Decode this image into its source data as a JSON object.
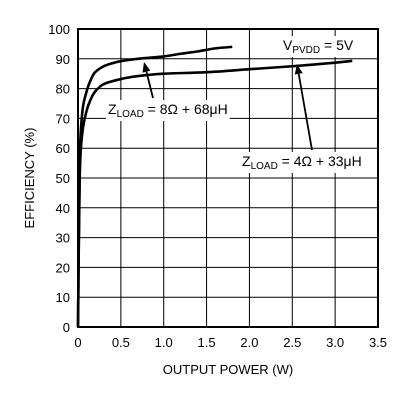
{
  "chart_data": {
    "type": "line",
    "xlabel": "OUTPUT POWER (W)",
    "ylabel": "EFFICIENCY (%)",
    "xlim": [
      0,
      3.5
    ],
    "ylim": [
      0,
      100
    ],
    "xticks": [
      "0",
      "0.5",
      "1.0",
      "1.5",
      "2.0",
      "2.5",
      "3.0",
      "3.5"
    ],
    "yticks": [
      "0",
      "10",
      "20",
      "30",
      "40",
      "50",
      "60",
      "70",
      "80",
      "90",
      "100"
    ],
    "grid": true,
    "annotations": {
      "vpvdd": {
        "main": "V",
        "sub": "PVDD",
        "rest": " = 5V"
      },
      "load8": {
        "main": "Z",
        "sub": "LOAD",
        "rest": " = 8Ω + 68μH"
      },
      "load4": {
        "main": "Z",
        "sub": "LOAD",
        "rest": " = 4Ω + 33μH"
      }
    },
    "series": [
      {
        "label_key": "load8",
        "x": [
          0,
          0.02,
          0.05,
          0.1,
          0.15,
          0.2,
          0.3,
          0.4,
          0.5,
          0.7,
          1.0,
          1.2,
          1.4,
          1.6,
          1.8
        ],
        "y": [
          0,
          55,
          72,
          79,
          83,
          85.5,
          87.5,
          88.5,
          89.2,
          90,
          90.8,
          91.7,
          92.5,
          93.5,
          94
        ]
      },
      {
        "label_key": "load4",
        "x": [
          0,
          0.02,
          0.05,
          0.1,
          0.15,
          0.2,
          0.3,
          0.5,
          0.7,
          1.0,
          1.5,
          2.0,
          2.5,
          3.0,
          3.2
        ],
        "y": [
          0,
          50,
          65,
          72.5,
          76.5,
          79,
          81.5,
          83.2,
          84.2,
          85,
          85.5,
          86.5,
          87.5,
          88.7,
          89.3
        ]
      }
    ]
  }
}
